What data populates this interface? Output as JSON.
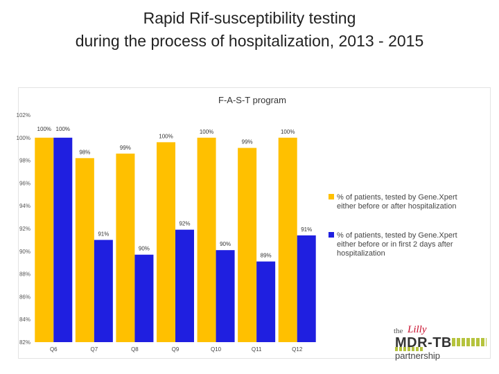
{
  "slide": {
    "title_line1": "Rapid Rif-susceptibility testing",
    "title_line2": "during the process of hospitalization, 2013 - 2015"
  },
  "logo": {
    "text_the": "the",
    "text_lilly": "Lilly",
    "text_main": "MDR-TB",
    "text_sub": "partnership"
  },
  "colors": {
    "series1": "#FFC000",
    "series2": "#1F1FE0",
    "stripes": "#B5C33D"
  },
  "chart_data": {
    "type": "bar",
    "title": "F-A-S-T  program",
    "categories": [
      "Q6",
      "Q7",
      "Q8",
      "Q9",
      "Q10",
      "Q11",
      "Q12"
    ],
    "ylim": [
      82,
      102
    ],
    "yticks": [
      82,
      84,
      86,
      88,
      90,
      92,
      94,
      96,
      98,
      100,
      102
    ],
    "ytick_labels": [
      "82%",
      "84%",
      "86%",
      "88%",
      "90%",
      "92%",
      "94%",
      "96%",
      "98%",
      "100%",
      "102%"
    ],
    "grid": false,
    "legend_position": "right",
    "series": [
      {
        "name": "% of patients, tested by Gene.Xpert either before or after hospitalization",
        "legend_lines": [
          "% of patients, tested by Gene.Xpert",
          "either before or after hospitalization"
        ],
        "color": "#FFC000",
        "values": [
          100,
          98.2,
          98.6,
          99.6,
          100,
          99.1,
          100
        ],
        "labels": [
          "100%",
          "98%",
          "99%",
          "100%",
          "100%",
          "99%",
          "100%"
        ]
      },
      {
        "name": "% of patients, tested by Gene.Xpert either before or in first 2 days after hospitalization",
        "legend_lines": [
          "% of patients, tested by Gene.Xpert",
          "either before or in first 2 days after",
          "hospitalization"
        ],
        "color": "#1F1FE0",
        "values": [
          100,
          91.0,
          89.7,
          91.9,
          90.1,
          89.1,
          91.4
        ],
        "labels": [
          "100%",
          "91%",
          "90%",
          "92%",
          "90%",
          "89%",
          "91%"
        ]
      }
    ]
  }
}
